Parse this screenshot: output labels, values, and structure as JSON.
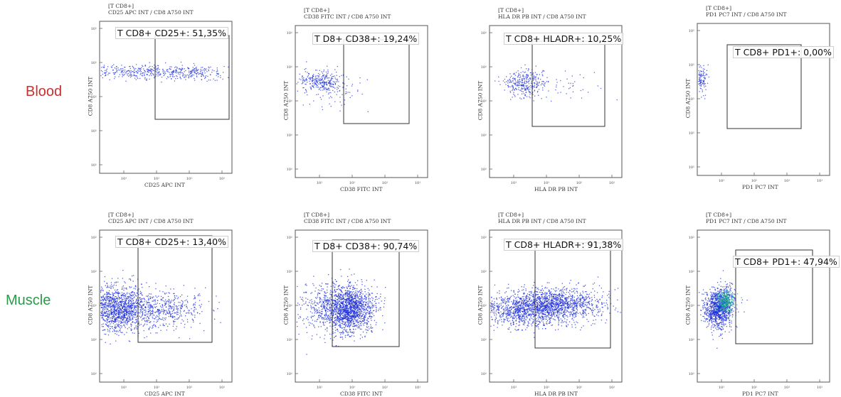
{
  "rows": {
    "blood": "Blood",
    "muscle": "Muscle"
  },
  "panel_header": "[T CD8+]",
  "panels": [
    {
      "title": "CD25 APC INT / CD8 A750 INT",
      "xlabel": "CD25 APC INT",
      "ylabel": "CD8 A750 INT",
      "gate_label": "T CD8+ CD25+: 51,35%"
    },
    {
      "title": "CD38 FITC INT / CD8 A750 INT",
      "xlabel": "CD38 FITC INT",
      "ylabel": "CD8 A750 INT",
      "gate_label": "T D8+ CD38+: 19,24%"
    },
    {
      "title": "HLA DR PB INT / CD8 A750 INT",
      "xlabel": "HLA DR PB INT",
      "ylabel": "CD8 A750 INT",
      "gate_label": "T CD8+ HLADR+: 10,25%"
    },
    {
      "title": "PD1 PC7 INT / CD8 A750 INT",
      "xlabel": "PD1 PC7 INT",
      "ylabel": "CD8 A750 INT",
      "gate_label": "T CD8+ PD1+: 0,00%"
    },
    {
      "title": "CD25 APC INT / CD8 A750 INT",
      "xlabel": "CD25 APC INT",
      "ylabel": "CD8 A750 INT",
      "gate_label": "T CD8+ CD25+: 13,40%"
    },
    {
      "title": "CD38 FITC INT / CD8 A750 INT",
      "xlabel": "CD38 FITC INT",
      "ylabel": "CD8 A750 INT",
      "gate_label": "T D8+ CD38+: 90,74%"
    },
    {
      "title": "HLA DR PB INT / CD8 A750 INT",
      "xlabel": "HLA DR PB INT",
      "ylabel": "CD8 A750 INT",
      "gate_label": "T CD8+ HLADR+: 91,38%"
    },
    {
      "title": "PD1 PC7 INT / CD8 A750 INT",
      "xlabel": "PD1 PC7 INT",
      "ylabel": "CD8 A750 INT",
      "gate_label": "T CD8+ PD1+: 47,94%"
    }
  ],
  "chart_data": [
    {
      "type": "scatter",
      "row": "Blood",
      "x_marker": "CD25 APC INT",
      "y_marker": "CD8 A750 INT",
      "scale": "log",
      "xlim": [
        0.1,
        1000
      ],
      "ylim": [
        0.1,
        1000
      ],
      "gated_percent": 51.35,
      "population": {
        "x_range": [
          0.6,
          8
        ],
        "y_center": 20
      }
    },
    {
      "type": "scatter",
      "row": "Blood",
      "x_marker": "CD38 FITC INT",
      "y_marker": "CD8 A750 INT",
      "scale": "log",
      "xlim": [
        0.1,
        1000
      ],
      "ylim": [
        0.1,
        1000
      ],
      "gated_percent": 19.24,
      "population": {
        "x_center": 0.35,
        "y_center": 20
      }
    },
    {
      "type": "scatter",
      "row": "Blood",
      "x_marker": "HLA DR PB INT",
      "y_marker": "CD8 A750 INT",
      "scale": "log",
      "xlim": [
        0.1,
        1000
      ],
      "ylim": [
        0.1,
        1000
      ],
      "gated_percent": 10.25,
      "population": {
        "x_center": 0.45,
        "y_center": 22
      }
    },
    {
      "type": "scatter",
      "row": "Blood",
      "x_marker": "PD1 PC7 INT",
      "y_marker": "CD8 A750 INT",
      "scale": "log",
      "xlim": [
        0.1,
        1000
      ],
      "ylim": [
        0.1,
        1000
      ],
      "gated_percent": 0.0,
      "population": {
        "x_center": 0.13,
        "y_center": 25
      }
    },
    {
      "type": "scatter",
      "row": "Muscle",
      "x_marker": "CD25 APC INT",
      "y_marker": "CD8 A750 INT",
      "scale": "log",
      "xlim": [
        0.1,
        1000
      ],
      "ylim": [
        0.1,
        1000
      ],
      "gated_percent": 13.4,
      "population": {
        "x_center": 0.4,
        "y_center": 12
      }
    },
    {
      "type": "scatter",
      "row": "Muscle",
      "x_marker": "CD38 FITC INT",
      "y_marker": "CD8 A750 INT",
      "scale": "log",
      "xlim": [
        0.1,
        1000
      ],
      "ylim": [
        0.1,
        1000
      ],
      "gated_percent": 90.74,
      "population": {
        "x_center": 4,
        "y_center": 10
      }
    },
    {
      "type": "scatter",
      "row": "Muscle",
      "x_marker": "HLA DR PB INT",
      "y_marker": "CD8 A750 INT",
      "scale": "log",
      "xlim": [
        0.1,
        1000
      ],
      "ylim": [
        0.1,
        1000
      ],
      "gated_percent": 91.38,
      "population": {
        "x_center": 6,
        "y_center": 12
      }
    },
    {
      "type": "scatter",
      "row": "Muscle",
      "x_marker": "PD1 PC7 INT",
      "y_marker": "CD8 A750 INT",
      "scale": "log",
      "xlim": [
        0.1,
        1000
      ],
      "ylim": [
        0.1,
        1000
      ],
      "gated_percent": 47.94,
      "population": {
        "x_center": 0.6,
        "y_center": 20
      }
    }
  ]
}
